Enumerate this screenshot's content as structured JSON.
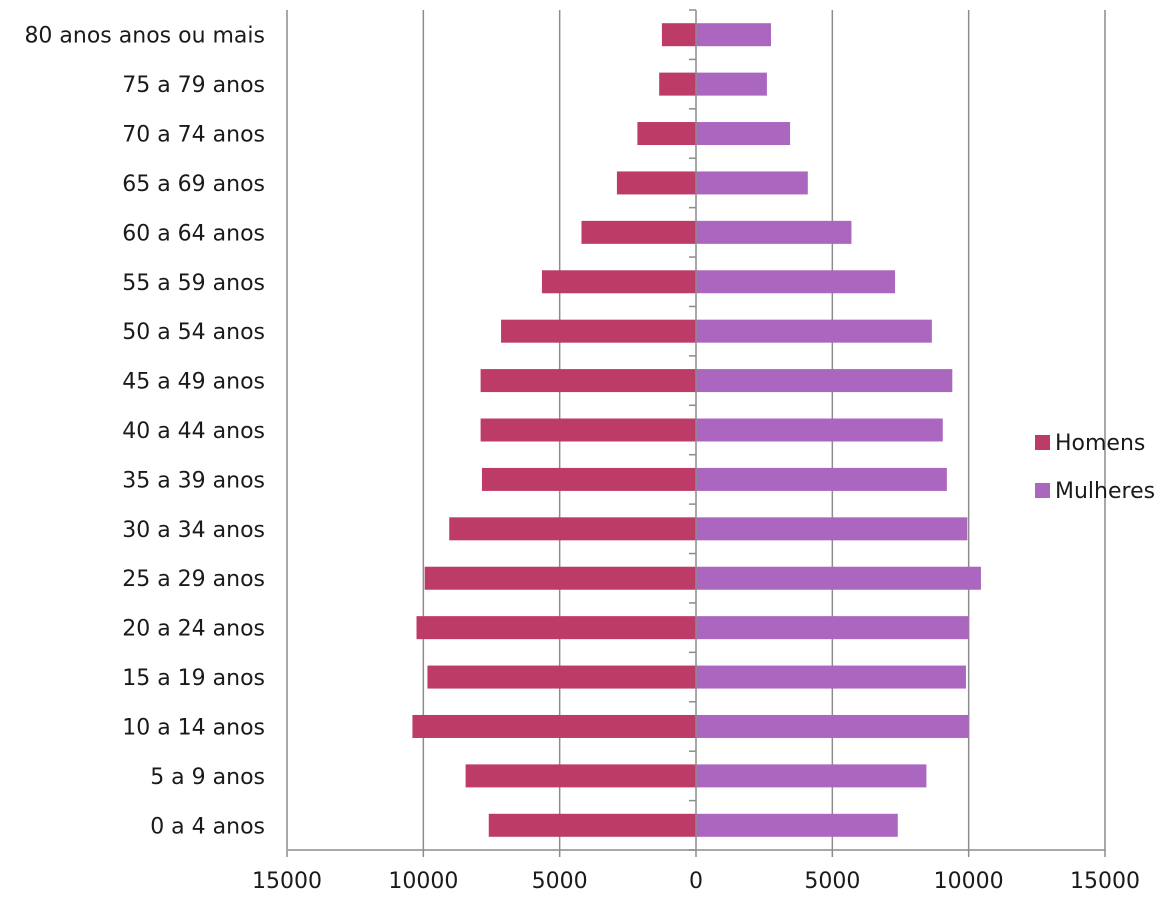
{
  "chart_data": {
    "type": "bar",
    "orientation": "horizontal",
    "layout": "population-pyramid",
    "categories": [
      "0 a 4 anos",
      "5 a 9 anos",
      "10 a 14 anos",
      "15 a 19 anos",
      "20 a 24 anos",
      "25 a 29 anos",
      "30 a 34 anos",
      "35 a 39 anos",
      "40 a 44 anos",
      "45 a 49 anos",
      "50 a 54 anos",
      "55 a 59 anos",
      "60 a 64 anos",
      "65 a 69 anos",
      "70 a 74 anos",
      "75 a 79 anos",
      "80 anos anos ou mais"
    ],
    "series": [
      {
        "name": "Homens",
        "color": "#bc3c67",
        "values": [
          7600,
          8450,
          10400,
          9850,
          10250,
          9950,
          9050,
          7850,
          7900,
          7900,
          7150,
          5650,
          4200,
          2900,
          2150,
          1350,
          1250
        ]
      },
      {
        "name": "Mulheres",
        "color": "#ab66bf",
        "values": [
          7400,
          8450,
          10000,
          9900,
          10000,
          10450,
          9950,
          9200,
          9050,
          9400,
          8650,
          7300,
          5700,
          4100,
          3450,
          2600,
          2750
        ]
      }
    ],
    "x_ticks": [
      "15000",
      "10000",
      "5000",
      "0",
      "5000",
      "10000",
      "15000"
    ],
    "xlim": [
      -15000,
      15000
    ],
    "grid": true,
    "legend_position": "right",
    "title": "",
    "xlabel": "",
    "ylabel": ""
  }
}
